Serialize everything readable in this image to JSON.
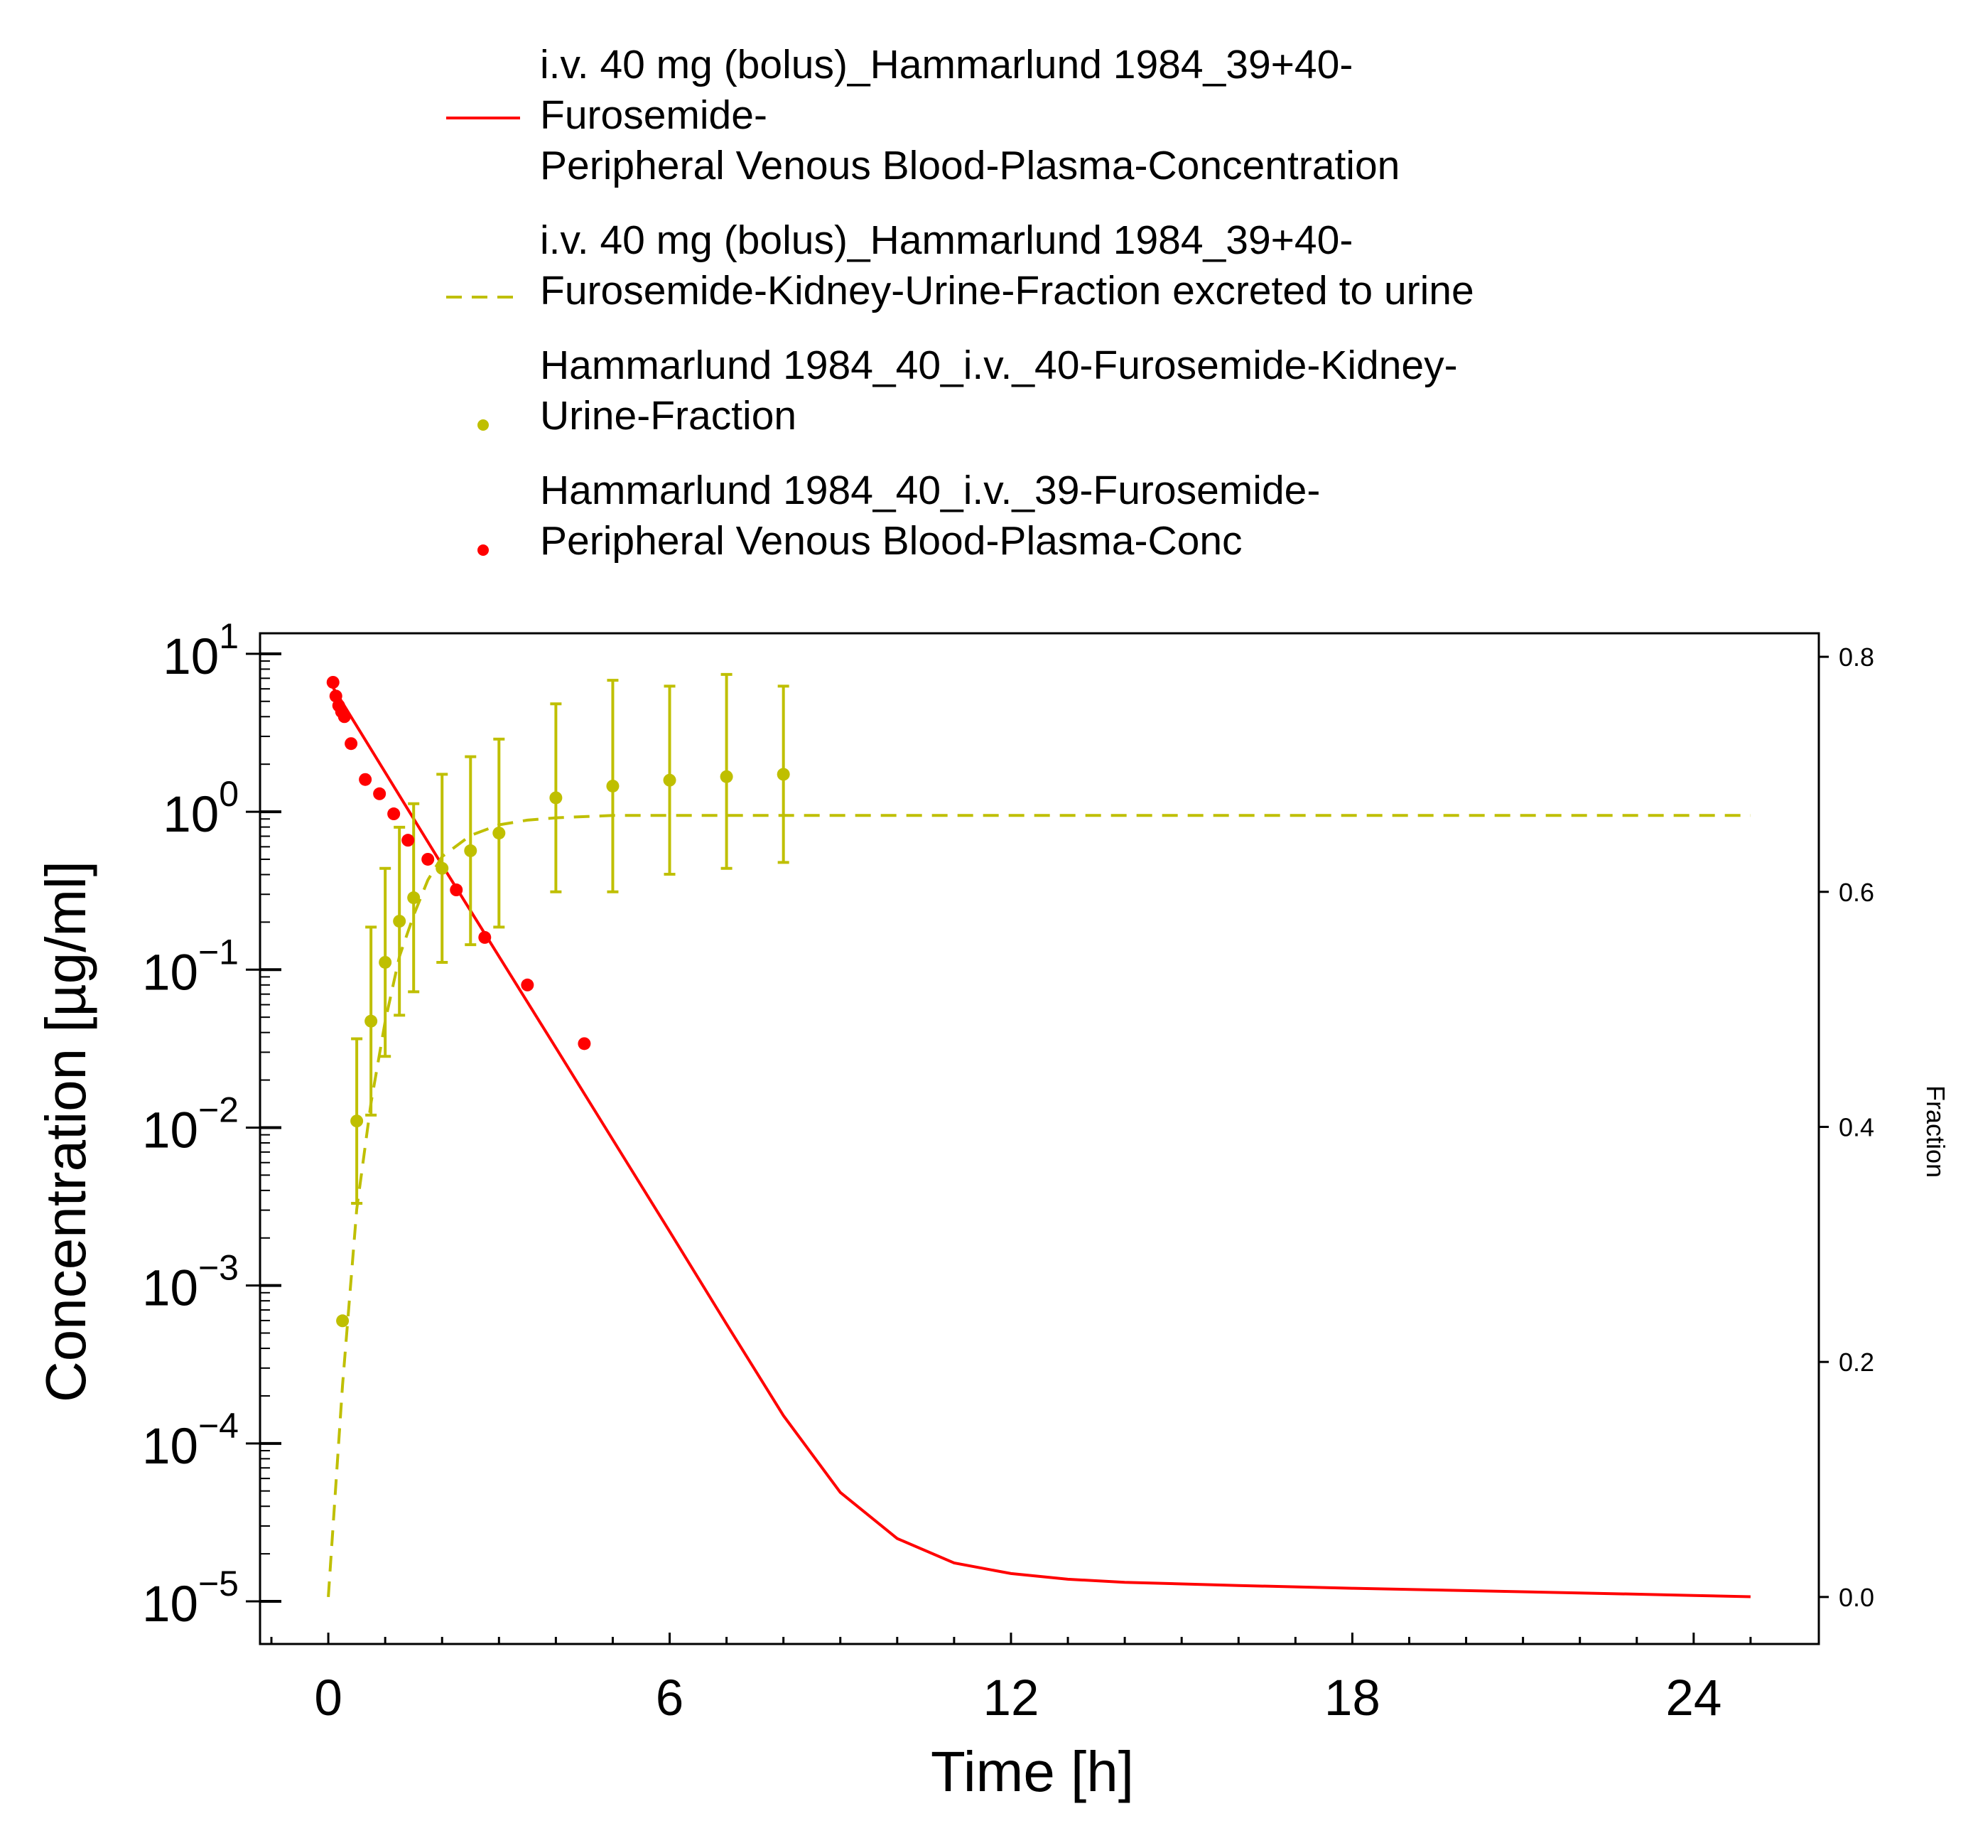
{
  "chart_data": {
    "type": "line",
    "xlabel": "Time [h]",
    "ylabel": "Concentration [µg/ml]",
    "y2label": "Fraction",
    "xlim": [
      -1.2,
      26.2
    ],
    "ylim_log10": [
      -5.27,
      1.13
    ],
    "y2lim": [
      -0.04,
      0.82
    ],
    "yscale": "log",
    "legend_position": "top",
    "grid": false,
    "x_ticks": [
      "0",
      "6",
      "12",
      "18",
      "24"
    ],
    "x_tick_values": [
      0,
      6,
      12,
      18,
      24
    ],
    "y_ticks": [
      {
        "exp": -5,
        "base": "10",
        "power": "−5"
      },
      {
        "exp": -4,
        "base": "10",
        "power": "−4"
      },
      {
        "exp": -3,
        "base": "10",
        "power": "−3"
      },
      {
        "exp": -2,
        "base": "10",
        "power": "−2"
      },
      {
        "exp": -1,
        "base": "10",
        "power": "−1"
      },
      {
        "exp": 0,
        "base": "10",
        "power": "0"
      },
      {
        "exp": 1,
        "base": "10",
        "power": "1"
      }
    ],
    "y2_ticks": [
      "0.0",
      "0.2",
      "0.4",
      "0.6",
      "0.8"
    ],
    "y2_tick_values": [
      0.0,
      0.2,
      0.4,
      0.6,
      0.8
    ],
    "series": [
      {
        "name_lines": [
          "i.v. 40 mg (bolus)_Hammarlund 1984_39+40-",
          "Furosemide-",
          "Peripheral Venous Blood-Plasma-Concentration"
        ],
        "kind": "line",
        "axis": "left",
        "color": "#FF0000",
        "dash": "solid",
        "x": [
          0.05,
          2,
          4,
          6,
          7,
          8,
          9,
          10,
          11,
          12,
          13,
          14,
          16,
          18,
          20,
          22,
          24,
          25
        ],
        "y": [
          6.4,
          0.46,
          0.032,
          0.0022,
          0.00057,
          0.00015,
          4.9e-05,
          2.5e-05,
          1.75e-05,
          1.5e-05,
          1.38e-05,
          1.32e-05,
          1.26e-05,
          1.21e-05,
          1.17e-05,
          1.13e-05,
          1.09e-05,
          1.07e-05
        ]
      },
      {
        "name_lines": [
          "i.v. 40 mg (bolus)_Hammarlund 1984_39+40-",
          "Furosemide-Kidney-Urine-Fraction excreted to urine"
        ],
        "kind": "line",
        "axis": "right",
        "color": "#BFBF00",
        "dash": "dashed",
        "x": [
          0,
          0.25,
          0.5,
          0.75,
          1.0,
          1.25,
          1.5,
          1.75,
          2.0,
          2.5,
          3.0,
          3.5,
          4.0,
          5,
          6,
          8,
          12,
          16,
          20,
          25
        ],
        "y": [
          0.0,
          0.18,
          0.33,
          0.42,
          0.49,
          0.545,
          0.58,
          0.61,
          0.63,
          0.648,
          0.657,
          0.661,
          0.663,
          0.665,
          0.665,
          0.665,
          0.665,
          0.665,
          0.665,
          0.665
        ]
      },
      {
        "name_lines": [
          "Hammarlund 1984_40_i.v._40-Furosemide-Kidney-",
          "Urine-Fraction"
        ],
        "kind": "scatter",
        "axis": "right",
        "color": "#BFBF00",
        "x": [
          0.25,
          0.5,
          0.75,
          1.0,
          1.25,
          1.5,
          2.0,
          2.5,
          3.0,
          4.0,
          5.0,
          6.0,
          7.0,
          8.0
        ],
        "y": [
          0.235,
          0.405,
          0.49,
          0.54,
          0.575,
          0.595,
          0.62,
          0.635,
          0.65,
          0.68,
          0.69,
          0.695,
          0.698,
          0.7
        ],
        "err_low": [
          0.235,
          0.335,
          0.41,
          0.46,
          0.495,
          0.515,
          0.54,
          0.555,
          0.57,
          0.6,
          0.6,
          0.615,
          0.62,
          0.625
        ],
        "err_high": [
          0.235,
          0.475,
          0.57,
          0.62,
          0.655,
          0.675,
          0.7,
          0.715,
          0.73,
          0.76,
          0.78,
          0.775,
          0.785,
          0.775
        ]
      },
      {
        "name_lines": [
          "Hammarlund 1984_40_i.v._39-Furosemide-",
          "Peripheral Venous Blood-Plasma-Conc"
        ],
        "kind": "scatter",
        "axis": "left",
        "color": "#FF0000",
        "x": [
          0.083,
          0.133,
          0.183,
          0.233,
          0.283,
          0.4,
          0.65,
          0.9,
          1.15,
          1.4,
          1.75,
          2.25,
          2.75,
          3.5,
          4.5
        ],
        "y": [
          6.6,
          5.4,
          4.7,
          4.3,
          4.0,
          2.7,
          1.6,
          1.3,
          0.97,
          0.66,
          0.5,
          0.32,
          0.16,
          0.08,
          0.034
        ]
      }
    ]
  }
}
